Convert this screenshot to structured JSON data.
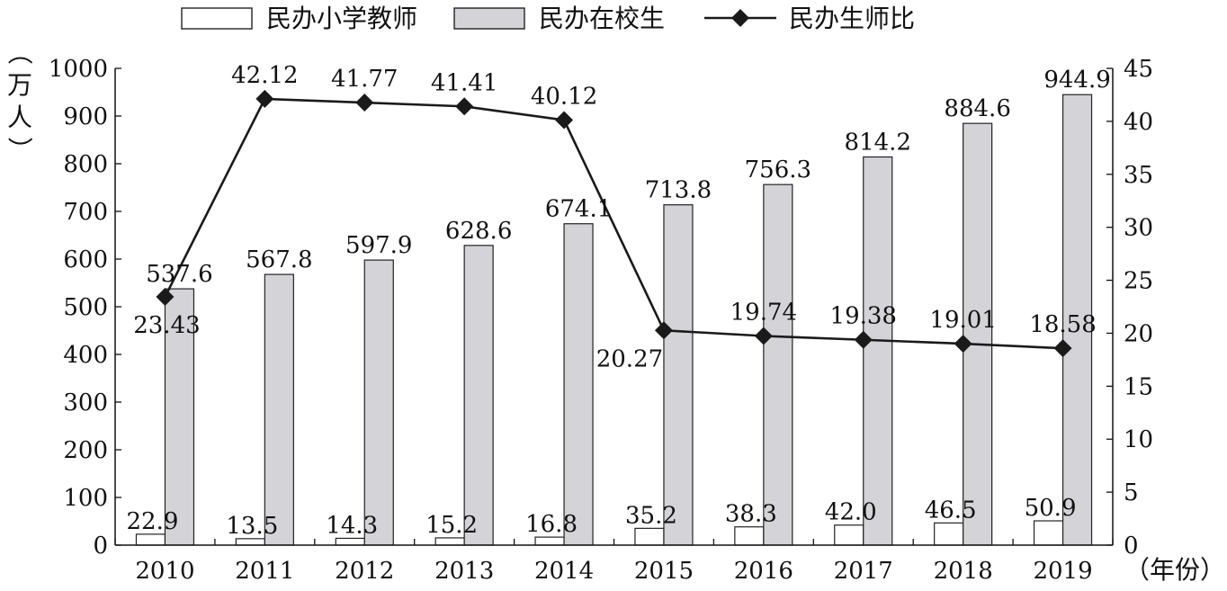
{
  "chart_data": {
    "type": "bar",
    "categories": [
      "2010",
      "2011",
      "2012",
      "2013",
      "2014",
      "2015",
      "2016",
      "2017",
      "2018",
      "2019"
    ],
    "series": [
      {
        "name": "民办小学教师",
        "kind": "bar",
        "axis": "left",
        "color": "#ffffff",
        "values": [
          22.9,
          13.5,
          14.3,
          15.2,
          16.8,
          35.2,
          38.3,
          42.0,
          46.5,
          50.9
        ],
        "labels": [
          "22.9",
          "13.5",
          "14.3",
          "15.2",
          "16.8",
          "35.2",
          "38.3",
          "42.0",
          "46.5",
          "50.9"
        ]
      },
      {
        "name": "民办在校生",
        "kind": "bar",
        "axis": "left",
        "color": "#d3d3d8",
        "values": [
          537.6,
          567.8,
          597.9,
          628.6,
          674.1,
          713.8,
          756.3,
          814.2,
          884.6,
          944.9
        ],
        "labels": [
          "537.6",
          "567.8",
          "597.9",
          "628.6",
          "674.1",
          "713.8",
          "756.3",
          "814.2",
          "884.6",
          "944.9"
        ]
      },
      {
        "name": "民办生师比",
        "kind": "line",
        "axis": "right",
        "color": "#1a1a1a",
        "values": [
          23.43,
          42.12,
          41.77,
          41.41,
          40.12,
          20.27,
          19.74,
          19.38,
          19.01,
          18.58
        ],
        "labels": [
          "23.43",
          "42.12",
          "41.77",
          "41.41",
          "40.12",
          "20.27",
          "19.74",
          "19.38",
          "19.01",
          "18.58"
        ]
      }
    ],
    "ylabel": "（万人）",
    "xlabel": "（年份）",
    "ylim": [
      0,
      1000
    ],
    "y2lim": [
      0,
      45
    ],
    "yticks": [
      "0",
      "100",
      "200",
      "300",
      "400",
      "500",
      "600",
      "700",
      "800",
      "900",
      "1000"
    ],
    "y2ticks": [
      "0",
      "5",
      "10",
      "15",
      "20",
      "25",
      "30",
      "35",
      "40",
      "45"
    ],
    "legend": "top",
    "grid": false
  }
}
